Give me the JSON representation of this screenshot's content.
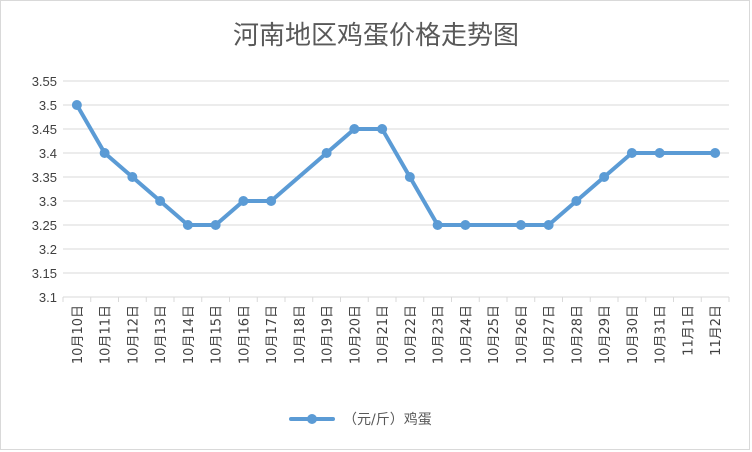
{
  "chart_data": {
    "type": "line",
    "title": "河南地区鸡蛋价格走势图",
    "xlabel": "",
    "ylabel": "",
    "ylim": [
      3.1,
      3.55
    ],
    "yticks": [
      "3.1",
      "3.15",
      "3.2",
      "3.25",
      "3.3",
      "3.35",
      "3.4",
      "3.45",
      "3.5",
      "3.55"
    ],
    "categories": [
      "10月10日",
      "10月11日",
      "10月12日",
      "10月13日",
      "10月14日",
      "10月15日",
      "10月16日",
      "10月17日",
      "10月18日",
      "10月19日",
      "10月20日",
      "10月21日",
      "10月22日",
      "10月23日",
      "10月24日",
      "10月25日",
      "10月26日",
      "10月27日",
      "10月28日",
      "10月29日",
      "10月30日",
      "10月31日",
      "11月1日",
      "11月2日"
    ],
    "series": [
      {
        "name": "（元/斤）鸡蛋",
        "color": "#5b9bd5",
        "values": [
          3.5,
          3.4,
          3.35,
          3.3,
          3.25,
          3.25,
          3.3,
          3.3,
          null,
          3.4,
          3.45,
          3.45,
          3.35,
          3.25,
          3.25,
          null,
          3.25,
          3.25,
          3.3,
          3.35,
          3.4,
          3.4,
          null,
          3.4
        ]
      }
    ],
    "grid": true,
    "legend": "bottom"
  }
}
